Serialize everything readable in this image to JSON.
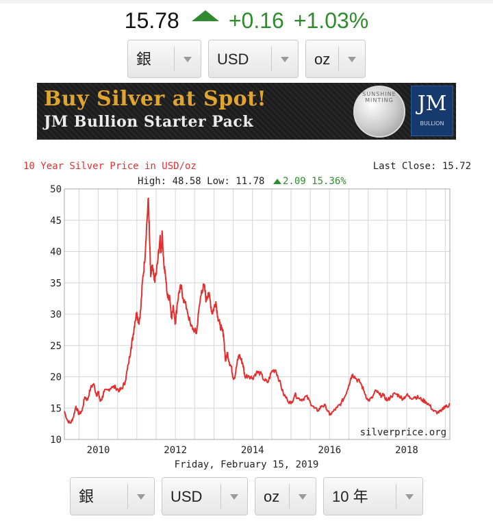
{
  "quote": {
    "price": "15.78",
    "change": "+0.16",
    "change_pct": "+1.03%",
    "direction": "up",
    "up_color": "#2e8b2e"
  },
  "top_selects": [
    {
      "value": "銀"
    },
    {
      "value": "USD"
    },
    {
      "value": "oz"
    }
  ],
  "banner": {
    "line1": "Buy Silver at Spot!",
    "line2": "JM Bullion Starter Pack",
    "coin_text": "SUNSHINE MINTING",
    "logo_text": "JM",
    "logo_sub": "BULLION"
  },
  "chart_data": {
    "type": "line",
    "title": "10 Year Silver Price in USD/oz",
    "last_close": "Last Close: 15.72",
    "stats_prefix": "High: 48.58 Low: 11.78",
    "stats_change": "2.09 15.36%",
    "watermark": "silverprice.org",
    "date_label": "Friday, February 15, 2019",
    "xlabel": "",
    "ylabel": "",
    "xlim": [
      2009.12,
      2019.12
    ],
    "ylim": [
      10,
      50
    ],
    "x_ticks": [
      "2010",
      "2012",
      "2014",
      "2016",
      "2018"
    ],
    "y_ticks": [
      "10",
      "15",
      "20",
      "25",
      "30",
      "35",
      "40",
      "45",
      "50"
    ],
    "grid": true,
    "line_color": "#e03030",
    "title_color": "#e03030",
    "up_color": "#2e8b2e",
    "series": [
      {
        "x": [
          2009.12,
          2009.2,
          2009.28,
          2009.35,
          2009.42,
          2009.5,
          2009.58,
          2009.65,
          2009.72,
          2009.8,
          2009.88,
          2009.95,
          2010.0,
          2010.05,
          2010.1,
          2010.15,
          2010.25,
          2010.35,
          2010.45,
          2010.55,
          2010.62,
          2010.7,
          2010.78,
          2010.85,
          2010.9,
          2010.95,
          2011.0,
          2011.05,
          2011.1,
          2011.15,
          2011.2,
          2011.25,
          2011.3,
          2011.33,
          2011.36,
          2011.4,
          2011.45,
          2011.5,
          2011.55,
          2011.6,
          2011.63,
          2011.66,
          2011.7,
          2011.75,
          2011.8,
          2011.85,
          2011.9,
          2011.95,
          2012.0,
          2012.05,
          2012.1,
          2012.15,
          2012.2,
          2012.3,
          2012.4,
          2012.5,
          2012.55,
          2012.6,
          2012.68,
          2012.75,
          2012.8,
          2012.85,
          2012.9,
          2012.95,
          2013.0,
          2013.05,
          2013.1,
          2013.15,
          2013.2,
          2013.25,
          2013.3,
          2013.35,
          2013.4,
          2013.45,
          2013.5,
          2013.55,
          2013.6,
          2013.65,
          2013.7,
          2013.75,
          2013.8,
          2013.9,
          2014.0,
          2014.1,
          2014.2,
          2014.3,
          2014.4,
          2014.5,
          2014.6,
          2014.7,
          2014.8,
          2014.9,
          2015.0,
          2015.1,
          2015.2,
          2015.3,
          2015.4,
          2015.5,
          2015.6,
          2015.7,
          2015.8,
          2015.9,
          2016.0,
          2016.1,
          2016.2,
          2016.3,
          2016.4,
          2016.5,
          2016.55,
          2016.6,
          2016.7,
          2016.8,
          2016.9,
          2017.0,
          2017.1,
          2017.2,
          2017.3,
          2017.4,
          2017.5,
          2017.6,
          2017.7,
          2017.8,
          2017.9,
          2018.0,
          2018.1,
          2018.2,
          2018.3,
          2018.4,
          2018.5,
          2018.6,
          2018.7,
          2018.8,
          2018.9,
          2019.0,
          2019.05,
          2019.12
        ],
        "y": [
          14.5,
          13.0,
          12.6,
          13.5,
          15.3,
          14.0,
          14.6,
          16.8,
          16.3,
          18.2,
          18.9,
          17.1,
          17.6,
          16.1,
          16.6,
          17.6,
          17.9,
          18.4,
          18.3,
          17.8,
          18.2,
          19.3,
          22.0,
          24.7,
          26.5,
          28.8,
          30.3,
          28.5,
          30.6,
          35.5,
          38.2,
          43.7,
          48.5,
          42.0,
          36.0,
          37.6,
          35.4,
          36.3,
          38.9,
          42.1,
          40.0,
          43.0,
          38.0,
          35.7,
          32.6,
          33.0,
          29.5,
          31.2,
          28.5,
          31.8,
          33.7,
          34.3,
          32.6,
          30.8,
          28.1,
          27.4,
          27.0,
          30.2,
          33.8,
          34.5,
          32.1,
          33.4,
          32.3,
          30.1,
          31.0,
          32.0,
          29.6,
          28.4,
          27.6,
          26.8,
          22.5,
          23.9,
          22.3,
          21.6,
          19.8,
          20.2,
          22.2,
          23.5,
          22.8,
          22.1,
          20.1,
          20.2,
          19.8,
          20.7,
          20.6,
          19.5,
          19.1,
          20.9,
          21.1,
          19.4,
          17.3,
          16.4,
          15.7,
          17.2,
          16.5,
          16.4,
          16.9,
          15.9,
          15.0,
          14.6,
          15.4,
          15.3,
          13.9,
          14.5,
          15.1,
          15.8,
          16.9,
          18.7,
          19.8,
          20.4,
          19.6,
          19.1,
          17.6,
          16.2,
          16.6,
          17.8,
          17.1,
          17.0,
          16.2,
          16.9,
          17.3,
          17.0,
          16.5,
          17.1,
          16.6,
          16.8,
          16.7,
          16.3,
          16.0,
          15.4,
          14.5,
          14.3,
          14.5,
          15.4,
          15.2,
          15.72
        ]
      }
    ]
  },
  "bottom_selects": [
    {
      "value": "銀"
    },
    {
      "value": "USD"
    },
    {
      "value": "oz"
    },
    {
      "value": "10 年"
    }
  ]
}
